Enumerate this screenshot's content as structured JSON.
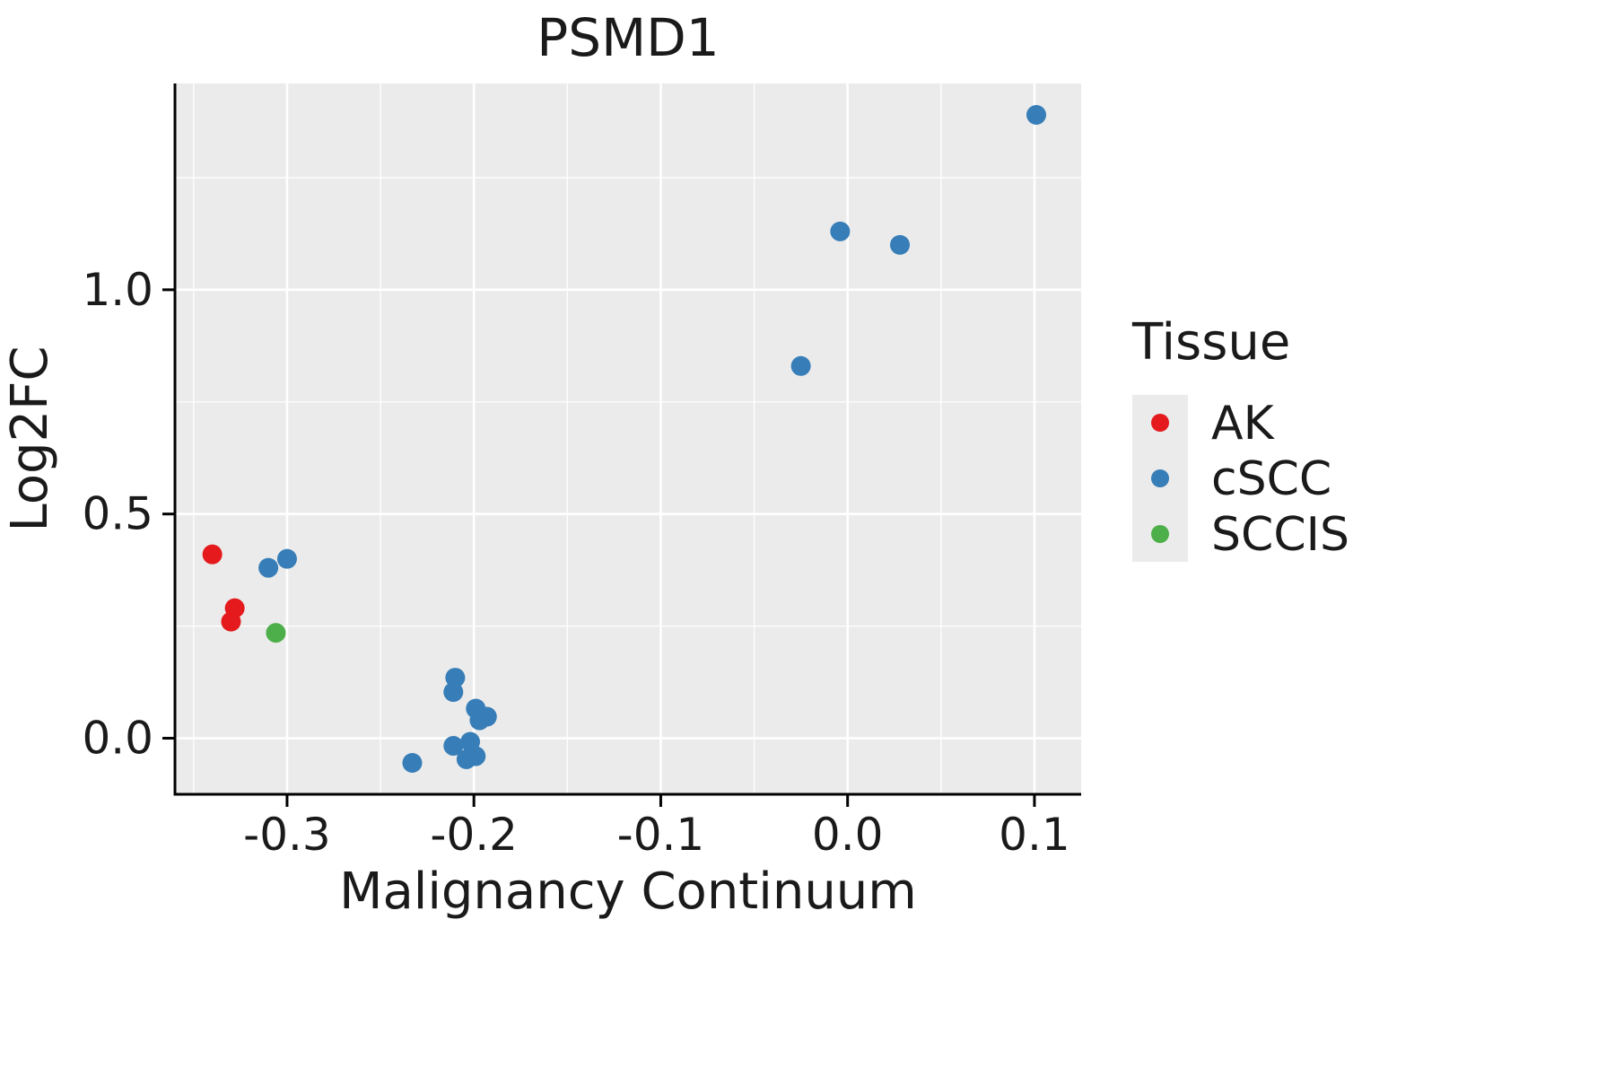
{
  "chart_data": {
    "type": "scatter",
    "title": "PSMD1",
    "xlabel": "Malignancy Continuum",
    "ylabel": "Log2FC",
    "xlim": [
      -0.36,
      0.125
    ],
    "ylim": [
      -0.125,
      1.46
    ],
    "grid": true,
    "panel_background": "#EBEBEB",
    "grid_color": "#FFFFFF",
    "axis_color": "#000000",
    "x_ticks": [
      {
        "value": -0.3,
        "label": "-0.3"
      },
      {
        "value": -0.2,
        "label": "-0.2"
      },
      {
        "value": -0.1,
        "label": "-0.1"
      },
      {
        "value": 0.0,
        "label": "0.0"
      },
      {
        "value": 0.1,
        "label": "0.1"
      }
    ],
    "y_ticks": [
      {
        "value": 0.0,
        "label": "0.0"
      },
      {
        "value": 0.5,
        "label": "0.5"
      },
      {
        "value": 1.0,
        "label": "1.0"
      }
    ],
    "x_minor_ticks": [
      -0.35,
      -0.25,
      -0.15,
      -0.05,
      0.05
    ],
    "y_minor_ticks": [
      0.25,
      0.75,
      1.25
    ],
    "legend_title": "Tissue",
    "legend_position": "right",
    "legend_key_background": "#EBEBEB",
    "series": [
      {
        "name": "AK",
        "color": "#E41A1C",
        "points": [
          [
            -0.34,
            0.41
          ],
          [
            -0.328,
            0.29
          ],
          [
            -0.33,
            0.26
          ]
        ]
      },
      {
        "name": "cSCC",
        "color": "#377EB8",
        "points": [
          [
            -0.31,
            0.38
          ],
          [
            -0.3,
            0.4
          ],
          [
            -0.233,
            -0.055
          ],
          [
            -0.21,
            0.135
          ],
          [
            -0.211,
            0.103
          ],
          [
            -0.199,
            0.066
          ],
          [
            -0.193,
            0.048
          ],
          [
            -0.197,
            0.04
          ],
          [
            -0.202,
            -0.008
          ],
          [
            -0.211,
            -0.017
          ],
          [
            -0.204,
            -0.047
          ],
          [
            -0.199,
            -0.04
          ],
          [
            -0.025,
            0.83
          ],
          [
            -0.004,
            1.13
          ],
          [
            0.028,
            1.1
          ],
          [
            0.101,
            1.39
          ]
        ]
      },
      {
        "name": "SCCIS",
        "color": "#4DAF4A",
        "points": [
          [
            -0.306,
            0.235
          ]
        ]
      }
    ]
  }
}
